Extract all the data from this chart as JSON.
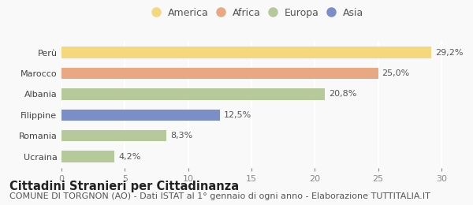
{
  "categories": [
    "Ucraina",
    "Romania",
    "Filippine",
    "Albania",
    "Marocco",
    "Perù"
  ],
  "values": [
    4.2,
    8.3,
    12.5,
    20.8,
    25.0,
    29.2
  ],
  "labels": [
    "4,2%",
    "8,3%",
    "12,5%",
    "20,8%",
    "25,0%",
    "29,2%"
  ],
  "colors": [
    "#b5c99a",
    "#b5c99a",
    "#7b8ec8",
    "#b5c99a",
    "#e8a882",
    "#f5d77e"
  ],
  "legend_items": [
    {
      "label": "America",
      "color": "#f5d77e"
    },
    {
      "label": "Africa",
      "color": "#e8a882"
    },
    {
      "label": "Europa",
      "color": "#b5c99a"
    },
    {
      "label": "Asia",
      "color": "#7b8ec8"
    }
  ],
  "xlim": [
    0,
    31
  ],
  "xticks": [
    0,
    5,
    10,
    15,
    20,
    25,
    30
  ],
  "title": "Cittadini Stranieri per Cittadinanza",
  "subtitle": "COMUNE DI TORGNON (AO) - Dati ISTAT al 1° gennaio di ogni anno - Elaborazione TUTTITALIA.IT",
  "background_color": "#f9f9f9",
  "bar_height": 0.55,
  "title_fontsize": 10.5,
  "subtitle_fontsize": 8,
  "label_fontsize": 8,
  "tick_fontsize": 8,
  "legend_fontsize": 9
}
